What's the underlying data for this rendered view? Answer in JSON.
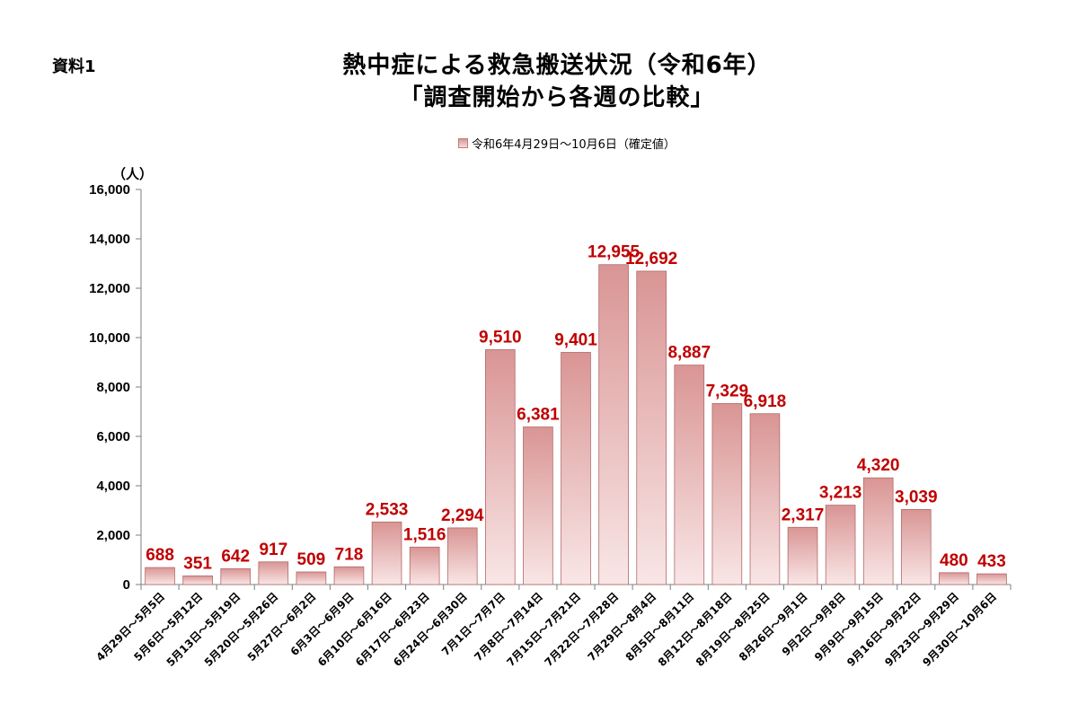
{
  "doc_label": "資料1",
  "title_line1": "熱中症による救急搬送状況（令和6年）",
  "title_line2": "「調査開始から各週の比較」",
  "legend_label": "令和6年4月29日～10月6日（確定値）",
  "unit_label": "（人）",
  "colors": {
    "bar_top": "#d99594",
    "bar_bottom": "#f9e6e6",
    "bar_edge": "#b36a69",
    "data_label": "#c00000"
  },
  "chart_data": {
    "type": "bar",
    "title": "熱中症による救急搬送状況（令和6年）「調査開始から各週の比較」",
    "series_name": "令和6年4月29日～10月6日（確定値）",
    "ylabel": "（人）",
    "ylim": [
      0,
      16000
    ],
    "y_ticks": [
      0,
      2000,
      4000,
      6000,
      8000,
      10000,
      12000,
      14000,
      16000
    ],
    "y_tick_labels": [
      "0",
      "2,000",
      "4,000",
      "6,000",
      "8,000",
      "10,000",
      "12,000",
      "14,000",
      "16,000"
    ],
    "categories": [
      "4月29日～5月5日",
      "5月6日～5月12日",
      "5月13日～5月19日",
      "5月20日～5月26日",
      "5月27日～6月2日",
      "6月3日～6月9日",
      "6月10日～6月16日",
      "6月17日～6月23日",
      "6月24日～6月30日",
      "7月1日～7月7日",
      "7月8日～7月14日",
      "7月15日～7月21日",
      "7月22日～7月28日",
      "7月29日～8月4日",
      "8月5日～8月11日",
      "8月12日～8月18日",
      "8月19日～8月25日",
      "8月26日～9月1日",
      "9月2日～9月8日",
      "9月9日～9月15日",
      "9月16日～9月22日",
      "9月23日～9月29日",
      "9月30日～10月6日"
    ],
    "values": [
      688,
      351,
      642,
      917,
      509,
      718,
      2533,
      1516,
      2294,
      9510,
      6381,
      9401,
      12955,
      12692,
      8887,
      7329,
      6918,
      2317,
      3213,
      4320,
      3039,
      480,
      433
    ],
    "value_labels": [
      "688",
      "351",
      "642",
      "917",
      "509",
      "718",
      "2,533",
      "1,516",
      "2,294",
      "9,510",
      "6,381",
      "9,401",
      "12,955",
      "12,692",
      "8,887",
      "7,329",
      "6,918",
      "2,317",
      "3,213",
      "4,320",
      "3,039",
      "480",
      "433"
    ]
  }
}
